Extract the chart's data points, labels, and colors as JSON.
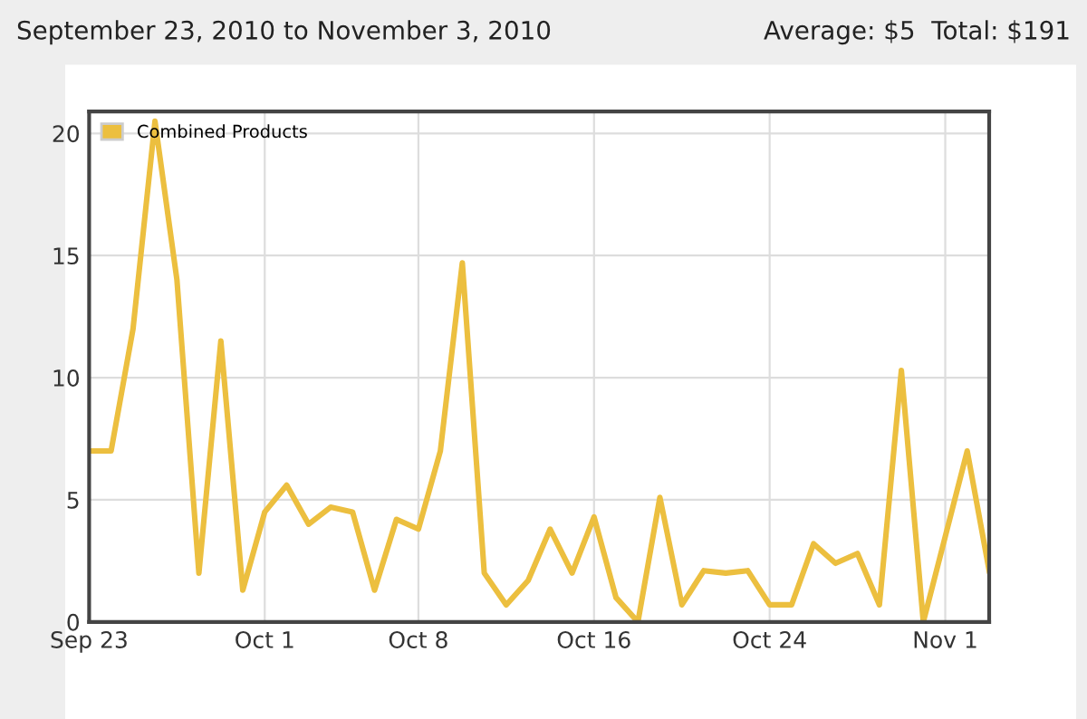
{
  "chart_data": {
    "type": "line",
    "title": "September 23, 2010 to November 3, 2010",
    "annotations": [
      "Average: $5  Total: $191"
    ],
    "x": [
      "2010-09-23",
      "2010-09-24",
      "2010-09-25",
      "2010-09-26",
      "2010-09-27",
      "2010-09-28",
      "2010-09-29",
      "2010-09-30",
      "2010-10-01",
      "2010-10-02",
      "2010-10-03",
      "2010-10-04",
      "2010-10-05",
      "2010-10-06",
      "2010-10-07",
      "2010-10-08",
      "2010-10-09",
      "2010-10-10",
      "2010-10-11",
      "2010-10-12",
      "2010-10-13",
      "2010-10-14",
      "2010-10-15",
      "2010-10-16",
      "2010-10-17",
      "2010-10-18",
      "2010-10-19",
      "2010-10-20",
      "2010-10-21",
      "2010-10-22",
      "2010-10-23",
      "2010-10-24",
      "2010-10-25",
      "2010-10-26",
      "2010-10-27",
      "2010-10-28",
      "2010-10-29",
      "2010-10-30",
      "2010-10-31",
      "2010-11-01",
      "2010-11-02",
      "2010-11-03"
    ],
    "series": [
      {
        "name": "Combined Products",
        "color": "#ecbf3f",
        "values": [
          7,
          7,
          12,
          20.5,
          14,
          2,
          11.5,
          1.3,
          4.5,
          5.6,
          4,
          4.7,
          4.5,
          1.3,
          4.2,
          3.8,
          7,
          14.7,
          2,
          0.7,
          1.7,
          3.8,
          2,
          4.3,
          1,
          0,
          5.1,
          0.7,
          2.1,
          2,
          2.1,
          0.7,
          0.7,
          3.2,
          2.4,
          2.8,
          0.7,
          10.3,
          0,
          3.5,
          7,
          2.1
        ]
      }
    ],
    "xlim": [
      "2010-09-23",
      "2010-11-03"
    ],
    "xticks": [
      {
        "value": "2010-09-23",
        "label": "Sep 23"
      },
      {
        "value": "2010-10-01",
        "label": "Oct 1"
      },
      {
        "value": "2010-10-08",
        "label": "Oct 8"
      },
      {
        "value": "2010-10-16",
        "label": "Oct 16"
      },
      {
        "value": "2010-10-24",
        "label": "Oct 24"
      },
      {
        "value": "2010-11-01",
        "label": "Nov 1"
      }
    ],
    "ylim": [
      0,
      20.9
    ],
    "yticks": [
      0,
      5,
      10,
      15,
      20
    ],
    "grid": true,
    "legend": "top left",
    "marker": "none",
    "line_style": "solid"
  }
}
